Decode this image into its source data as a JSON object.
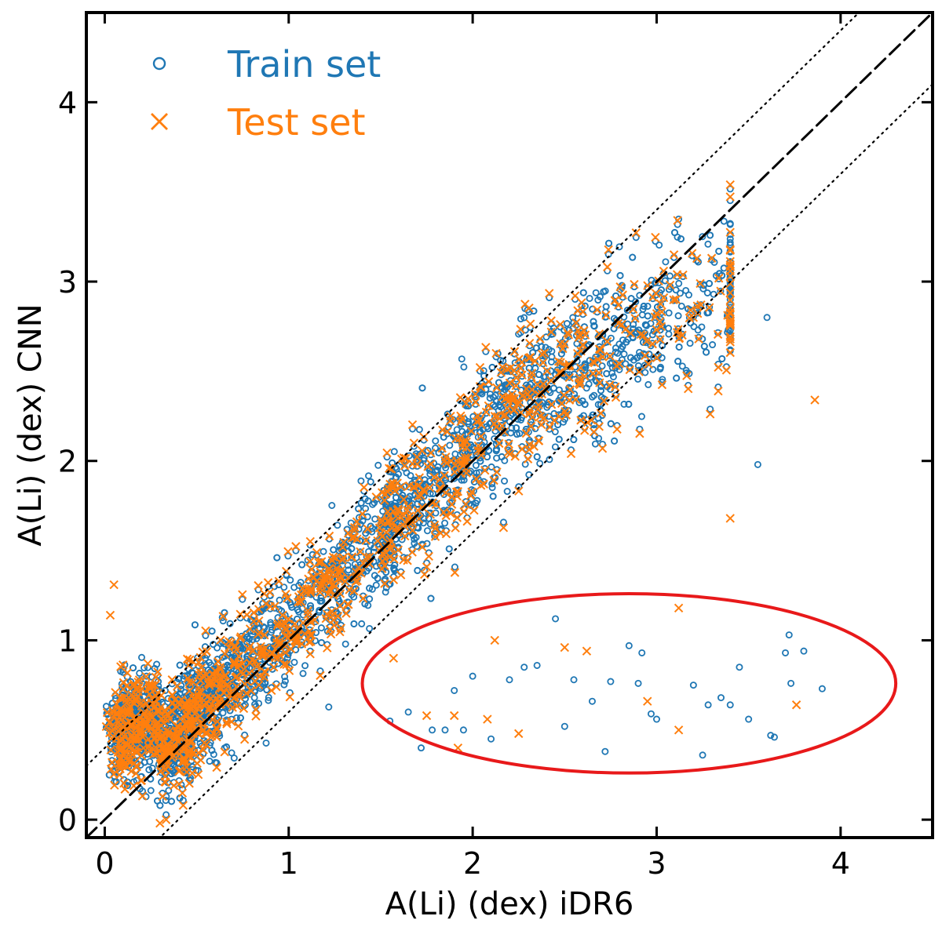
{
  "chart_data": {
    "type": "scatter",
    "title": "",
    "xlabel": "A(Li) (dex) iDR6",
    "ylabel": "A(Li) (dex) CNN",
    "xlim": [
      -0.1,
      4.5
    ],
    "ylim": [
      -0.1,
      4.5
    ],
    "xticks": [
      0,
      1,
      2,
      3,
      4
    ],
    "yticks": [
      0,
      1,
      2,
      3,
      4
    ],
    "x_tick_labels": [
      "0",
      "1",
      "2",
      "3",
      "4"
    ],
    "y_tick_labels": [
      "0",
      "1",
      "2",
      "3",
      "4"
    ],
    "legend_position": "top-left",
    "grid": false,
    "reference_lines": [
      {
        "name": "one-to-one",
        "style": "dashed",
        "slope": 1,
        "intercept": 0
      },
      {
        "name": "upper-bound",
        "style": "dotted",
        "slope": 1,
        "intercept": 0.4
      },
      {
        "name": "lower-bound",
        "style": "dotted",
        "slope": 1,
        "intercept": -0.4
      }
    ],
    "annotation": {
      "type": "ellipse",
      "color": "#e8191a",
      "center": [
        2.85,
        0.76
      ],
      "x_radius": 1.45,
      "y_radius": 0.5,
      "description": "outliers with underestimated CNN values"
    },
    "series": [
      {
        "name": "Train set",
        "marker": "circle",
        "color": "#1f77b4",
        "count": 3600,
        "approx_range": "0 to 3.6 dex, scattered around the one-to-one line",
        "outliers": [
          [
            1.55,
            0.55
          ],
          [
            1.65,
            0.6
          ],
          [
            1.72,
            0.4
          ],
          [
            1.78,
            0.5
          ],
          [
            1.85,
            0.5
          ],
          [
            1.9,
            0.72
          ],
          [
            1.95,
            0.5
          ],
          [
            2.0,
            0.8
          ],
          [
            2.1,
            0.45
          ],
          [
            2.2,
            0.78
          ],
          [
            2.28,
            0.85
          ],
          [
            2.35,
            0.86
          ],
          [
            2.45,
            1.12
          ],
          [
            2.5,
            0.52
          ],
          [
            2.55,
            0.78
          ],
          [
            2.65,
            0.66
          ],
          [
            2.72,
            0.38
          ],
          [
            2.75,
            0.77
          ],
          [
            2.85,
            0.97
          ],
          [
            2.92,
            0.93
          ],
          [
            2.9,
            0.76
          ],
          [
            2.97,
            0.59
          ],
          [
            3.0,
            0.56
          ],
          [
            3.2,
            0.75
          ],
          [
            3.25,
            0.36
          ],
          [
            3.28,
            0.64
          ],
          [
            3.35,
            0.68
          ],
          [
            3.4,
            0.64
          ],
          [
            3.45,
            0.85
          ],
          [
            3.5,
            0.56
          ],
          [
            3.62,
            0.47
          ],
          [
            3.64,
            0.46
          ],
          [
            3.7,
            0.93
          ],
          [
            3.73,
            0.76
          ],
          [
            3.72,
            1.03
          ],
          [
            3.8,
            0.94
          ],
          [
            3.9,
            0.73
          ],
          [
            3.55,
            1.98
          ],
          [
            3.6,
            2.8
          ]
        ]
      },
      {
        "name": "Test set",
        "marker": "x",
        "color": "#ff7f0e",
        "count": 1200,
        "approx_range": "0 to 3.5 dex, scattered around the one-to-one line",
        "outliers": [
          [
            1.57,
            0.9
          ],
          [
            1.75,
            0.58
          ],
          [
            1.9,
            0.58
          ],
          [
            1.92,
            0.4
          ],
          [
            2.08,
            0.56
          ],
          [
            2.12,
            1.0
          ],
          [
            2.25,
            0.48
          ],
          [
            2.5,
            0.96
          ],
          [
            2.62,
            0.94
          ],
          [
            2.95,
            0.66
          ],
          [
            3.12,
            0.5
          ],
          [
            3.12,
            1.18
          ],
          [
            3.4,
            1.68
          ],
          [
            3.76,
            0.64
          ],
          [
            3.86,
            2.34
          ],
          [
            0.05,
            1.31
          ],
          [
            0.03,
            1.14
          ],
          [
            0.3,
            -0.02
          ]
        ]
      }
    ]
  }
}
